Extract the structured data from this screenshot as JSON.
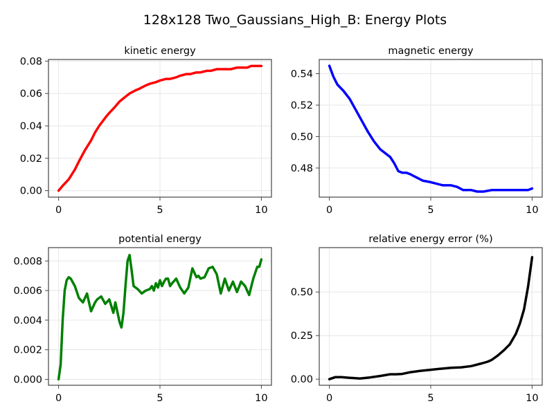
{
  "figure": {
    "title": "128x128 Two_Gaussians_High_B: Energy Plots"
  },
  "chart_data": [
    {
      "type": "line",
      "title": "kinetic energy",
      "xlabel": "",
      "ylabel": "",
      "xlim": [
        -0.5,
        10.5
      ],
      "ylim": [
        -0.004,
        0.081
      ],
      "xticks": [
        0,
        5,
        10
      ],
      "xtick_labels": [
        "0",
        "5",
        "10"
      ],
      "yticks": [
        0.0,
        0.02,
        0.04,
        0.06,
        0.08
      ],
      "ytick_labels": [
        "0.00",
        "0.02",
        "0.04",
        "0.06",
        "0.08"
      ],
      "grid": true,
      "series": [
        {
          "color": "#ff0000",
          "x": [
            0,
            0.2,
            0.5,
            0.8,
            1.0,
            1.3,
            1.6,
            1.8,
            2.0,
            2.3,
            2.5,
            2.8,
            3.0,
            3.3,
            3.5,
            3.8,
            4.0,
            4.3,
            4.5,
            4.8,
            5.0,
            5.3,
            5.5,
            5.8,
            6.0,
            6.3,
            6.5,
            6.8,
            7.0,
            7.3,
            7.5,
            7.8,
            8.0,
            8.3,
            8.5,
            8.8,
            9.0,
            9.3,
            9.5,
            9.8,
            10.0
          ],
          "y": [
            0.0,
            0.003,
            0.007,
            0.013,
            0.018,
            0.025,
            0.031,
            0.036,
            0.04,
            0.045,
            0.048,
            0.052,
            0.055,
            0.058,
            0.06,
            0.062,
            0.063,
            0.065,
            0.066,
            0.067,
            0.068,
            0.069,
            0.069,
            0.07,
            0.071,
            0.072,
            0.072,
            0.073,
            0.073,
            0.074,
            0.074,
            0.075,
            0.075,
            0.075,
            0.075,
            0.076,
            0.076,
            0.076,
            0.077,
            0.077,
            0.077
          ]
        }
      ]
    },
    {
      "type": "line",
      "title": "magnetic energy",
      "xlabel": "",
      "ylabel": "",
      "xlim": [
        -0.5,
        10.5
      ],
      "ylim": [
        0.4615,
        0.549
      ],
      "xticks": [
        0,
        5,
        10
      ],
      "xtick_labels": [
        "0",
        "5",
        "10"
      ],
      "yticks": [
        0.48,
        0.5,
        0.52,
        0.54
      ],
      "ytick_labels": [
        "0.48",
        "0.50",
        "0.52",
        "0.54"
      ],
      "grid": true,
      "series": [
        {
          "color": "#0000ff",
          "x": [
            0,
            0.2,
            0.4,
            0.7,
            1.0,
            1.3,
            1.6,
            1.9,
            2.2,
            2.5,
            2.8,
            3.0,
            3.2,
            3.4,
            3.6,
            3.8,
            4.0,
            4.3,
            4.6,
            5.0,
            5.3,
            5.6,
            6.0,
            6.3,
            6.6,
            6.8,
            7.0,
            7.3,
            7.6,
            8.0,
            8.3,
            8.6,
            8.9,
            9.2,
            9.5,
            9.8,
            10.0
          ],
          "y": [
            0.545,
            0.538,
            0.533,
            0.529,
            0.524,
            0.517,
            0.51,
            0.503,
            0.497,
            0.492,
            0.489,
            0.487,
            0.483,
            0.478,
            0.477,
            0.477,
            0.476,
            0.474,
            0.472,
            0.471,
            0.47,
            0.469,
            0.469,
            0.468,
            0.466,
            0.466,
            0.466,
            0.465,
            0.465,
            0.466,
            0.466,
            0.466,
            0.466,
            0.466,
            0.466,
            0.466,
            0.467
          ]
        }
      ]
    },
    {
      "type": "line",
      "title": "potential energy",
      "xlabel": "",
      "ylabel": "",
      "xlim": [
        -0.5,
        10.5
      ],
      "ylim": [
        -0.0004,
        0.0089
      ],
      "xticks": [
        0,
        5,
        10
      ],
      "xtick_labels": [
        "0",
        "5",
        "10"
      ],
      "yticks": [
        0.0,
        0.002,
        0.004,
        0.006,
        0.008
      ],
      "ytick_labels": [
        "0.000",
        "0.002",
        "0.004",
        "0.006",
        "0.008"
      ],
      "grid": true,
      "series": [
        {
          "color": "#008000",
          "x": [
            0,
            0.1,
            0.2,
            0.3,
            0.4,
            0.5,
            0.6,
            0.8,
            1.0,
            1.2,
            1.4,
            1.6,
            1.8,
            1.9,
            2.1,
            2.3,
            2.5,
            2.7,
            2.8,
            3.0,
            3.1,
            3.2,
            3.3,
            3.4,
            3.5,
            3.6,
            3.7,
            3.9,
            4.1,
            4.3,
            4.5,
            4.6,
            4.7,
            4.8,
            4.9,
            5.0,
            5.1,
            5.2,
            5.3,
            5.4,
            5.5,
            5.6,
            5.8,
            6.0,
            6.2,
            6.4,
            6.6,
            6.8,
            6.9,
            7.0,
            7.2,
            7.4,
            7.6,
            7.8,
            8.0,
            8.2,
            8.4,
            8.6,
            8.8,
            9.0,
            9.2,
            9.4,
            9.6,
            9.8,
            9.9,
            10.0
          ],
          "y": [
            0.0,
            0.001,
            0.004,
            0.006,
            0.0067,
            0.0069,
            0.0068,
            0.0063,
            0.0055,
            0.0052,
            0.0058,
            0.0046,
            0.0052,
            0.0054,
            0.0056,
            0.0051,
            0.0054,
            0.0045,
            0.0052,
            0.0039,
            0.0035,
            0.0045,
            0.0063,
            0.008,
            0.0084,
            0.0074,
            0.0063,
            0.0061,
            0.0058,
            0.006,
            0.0061,
            0.0063,
            0.006,
            0.0065,
            0.0062,
            0.0067,
            0.0063,
            0.0066,
            0.0068,
            0.0068,
            0.0063,
            0.0065,
            0.0068,
            0.0062,
            0.0058,
            0.0062,
            0.0075,
            0.0069,
            0.007,
            0.0068,
            0.0069,
            0.0075,
            0.0076,
            0.0071,
            0.0058,
            0.0068,
            0.006,
            0.0066,
            0.0059,
            0.0066,
            0.0063,
            0.0057,
            0.0068,
            0.0076,
            0.0076,
            0.0081
          ]
        }
      ]
    },
    {
      "type": "line",
      "title": "relative energy error (%)",
      "xlabel": "",
      "ylabel": "",
      "xlim": [
        -0.5,
        10.5
      ],
      "ylim": [
        -0.035,
        0.755
      ],
      "xticks": [
        0,
        5,
        10
      ],
      "xtick_labels": [
        "0",
        "5",
        "10"
      ],
      "yticks": [
        0.0,
        0.25,
        0.5
      ],
      "ytick_labels": [
        "0.00",
        "0.25",
        "0.50"
      ],
      "grid": true,
      "series": [
        {
          "color": "#000000",
          "x": [
            0,
            0.3,
            0.6,
            1.0,
            1.5,
            2.0,
            2.5,
            3.0,
            3.3,
            3.6,
            4.0,
            4.5,
            5.0,
            5.5,
            6.0,
            6.5,
            7.0,
            7.5,
            7.8,
            8.0,
            8.3,
            8.6,
            8.9,
            9.2,
            9.4,
            9.6,
            9.8,
            10.0
          ],
          "y": [
            0.0,
            0.012,
            0.012,
            0.008,
            0.004,
            0.01,
            0.018,
            0.028,
            0.028,
            0.03,
            0.04,
            0.048,
            0.054,
            0.06,
            0.065,
            0.068,
            0.075,
            0.09,
            0.1,
            0.11,
            0.135,
            0.165,
            0.2,
            0.26,
            0.32,
            0.4,
            0.53,
            0.7
          ]
        }
      ]
    }
  ]
}
